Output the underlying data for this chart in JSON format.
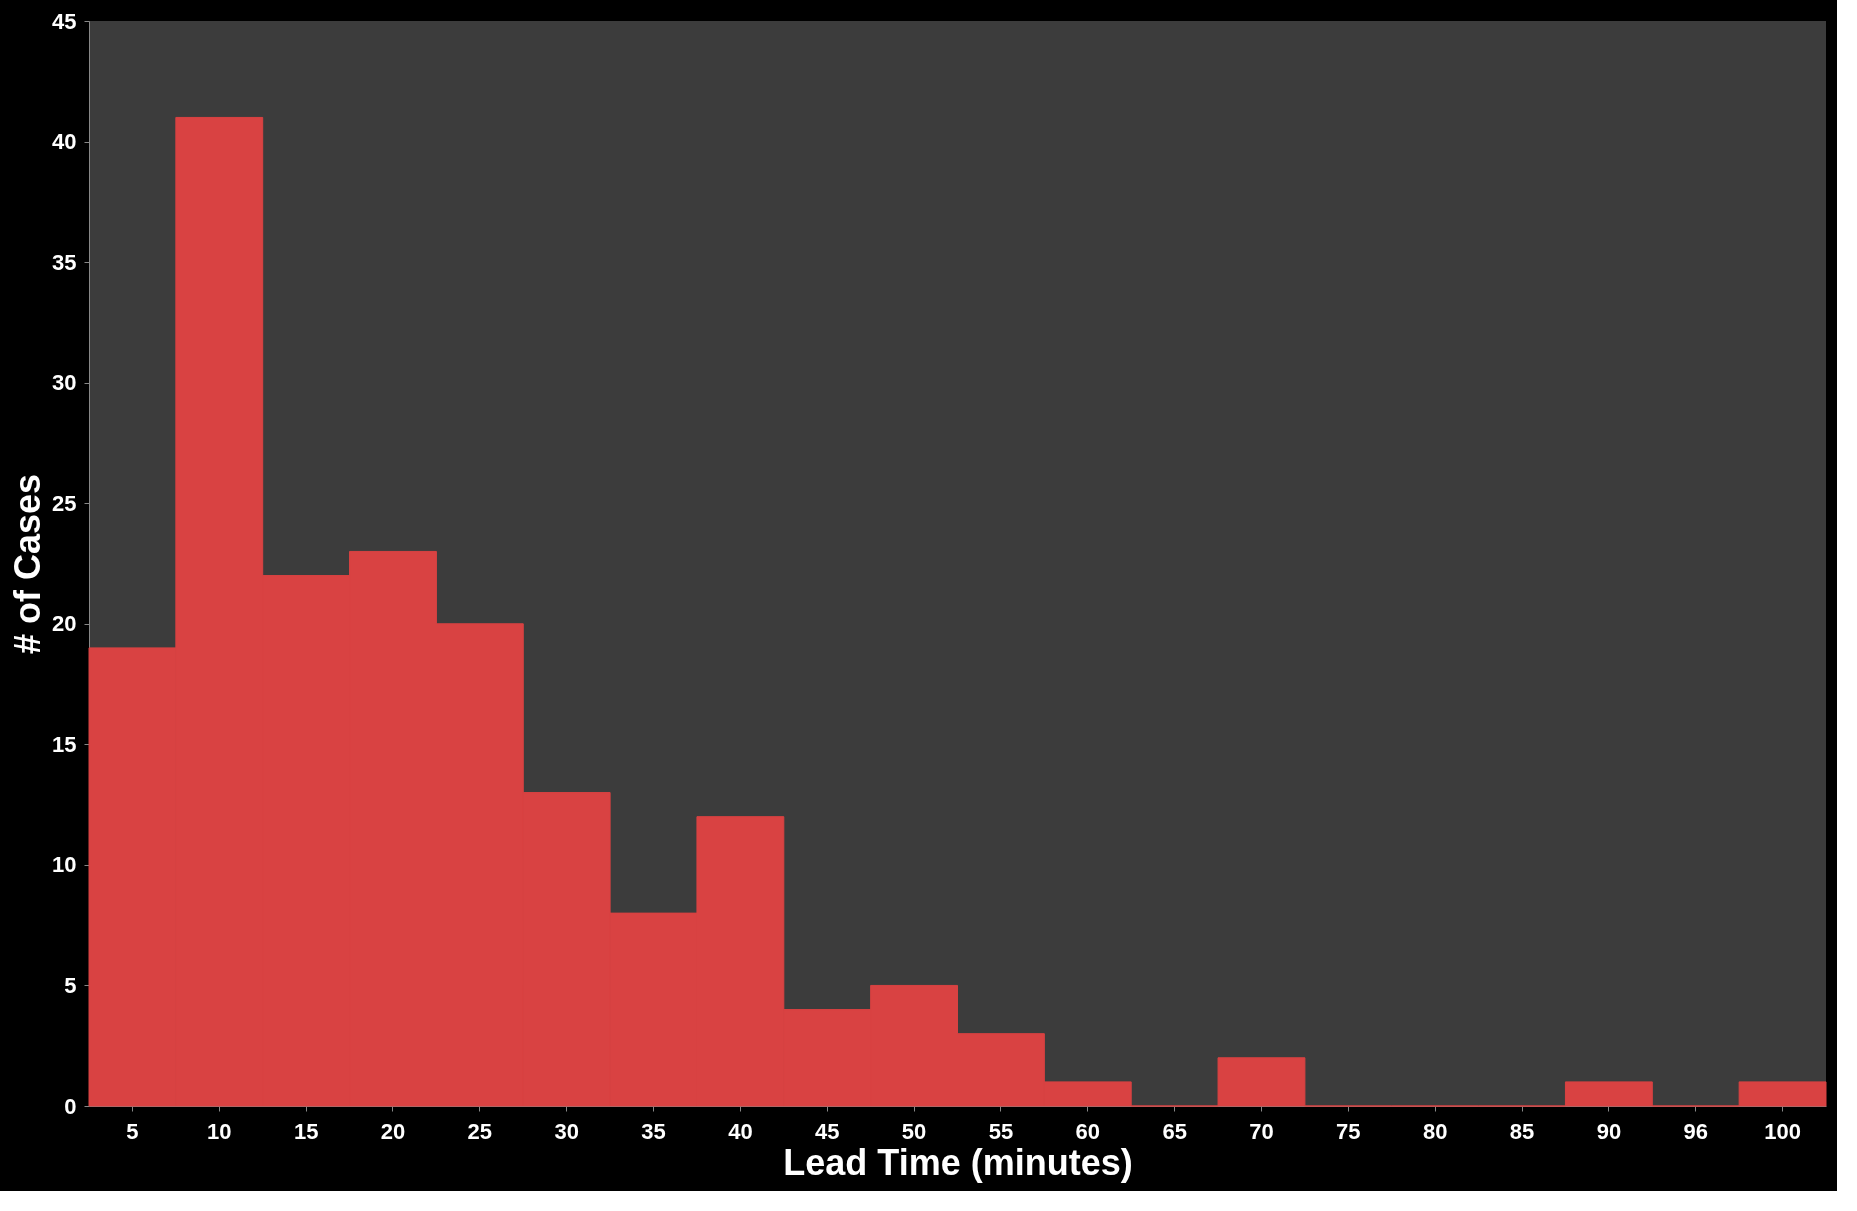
{
  "chart_data": {
    "type": "bar",
    "xlabel": "Lead Time (minutes)",
    "ylabel": "# of Cases",
    "categories": [
      "5",
      "10",
      "15",
      "20",
      "25",
      "30",
      "35",
      "40",
      "45",
      "50",
      "55",
      "60",
      "65",
      "70",
      "75",
      "80",
      "85",
      "90",
      "96",
      "100"
    ],
    "values": [
      19,
      41,
      22,
      23,
      20,
      13,
      8,
      12,
      4,
      5,
      3,
      1,
      0,
      2,
      0,
      0,
      0,
      1,
      0,
      1
    ],
    "color": "#d94242",
    "ylim": [
      0,
      45
    ],
    "yticks": [
      0,
      5,
      10,
      15,
      20,
      25,
      30,
      35,
      40,
      45
    ],
    "grid": false
  }
}
